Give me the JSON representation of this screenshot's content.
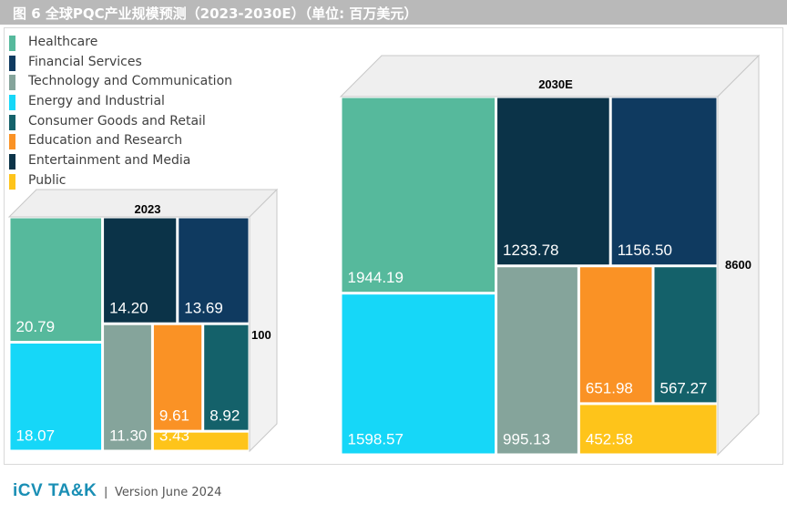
{
  "title": "图 6 全球PQC产业规模预测（2023-2030E）（单位: 百万美元）",
  "colors": {
    "Healthcare": "#56b99c",
    "Financial Services": "#0f3a60",
    "Technology and Communication": "#85a49b",
    "Energy and Industrial": "#16d7f8",
    "Consumer Goods and Retail": "#14616a",
    "Education and Research": "#fa9225",
    "Entertainment and Media": "#0b3348",
    "Public": "#fec41a"
  },
  "legend": [
    {
      "label": "Healthcare",
      "color": "#56b99c"
    },
    {
      "label": "Financial Services",
      "color": "#0f3a60"
    },
    {
      "label": "Technology and Communication",
      "color": "#85a49b"
    },
    {
      "label": "Energy and Industrial",
      "color": "#16d7f8"
    },
    {
      "label": "Consumer Goods and Retail",
      "color": "#14616a"
    },
    {
      "label": "Education and Research",
      "color": "#fa9225"
    },
    {
      "label": "Entertainment and Media",
      "color": "#0b3348"
    },
    {
      "label": "Public",
      "color": "#fec41a"
    }
  ],
  "chart_data": [
    {
      "type": "treemap",
      "title": "2023",
      "scale_label": "100",
      "series": [
        {
          "name": "Healthcare",
          "value": 20.79,
          "label": "20.79"
        },
        {
          "name": "Energy and Industrial",
          "value": 18.07,
          "label": "18.07"
        },
        {
          "name": "Entertainment and Media",
          "value": 14.2,
          "label": "14.20"
        },
        {
          "name": "Financial Services",
          "value": 13.69,
          "label": "13.69"
        },
        {
          "name": "Technology and Communication",
          "value": 11.3,
          "label": "11.30"
        },
        {
          "name": "Education and Research",
          "value": 9.61,
          "label": "9.61"
        },
        {
          "name": "Consumer Goods and Retail",
          "value": 8.92,
          "label": "8.92"
        },
        {
          "name": "Public",
          "value": 3.43,
          "label": "3.43"
        }
      ]
    },
    {
      "type": "treemap",
      "title": "2030E",
      "scale_label": "8600",
      "series": [
        {
          "name": "Healthcare",
          "value": 1944.19,
          "label": "1944.19"
        },
        {
          "name": "Energy and Industrial",
          "value": 1598.57,
          "label": "1598.57"
        },
        {
          "name": "Entertainment and Media",
          "value": 1233.78,
          "label": "1233.78"
        },
        {
          "name": "Financial Services",
          "value": 1156.5,
          "label": "1156.50"
        },
        {
          "name": "Technology and Communication",
          "value": 995.13,
          "label": "995.13"
        },
        {
          "name": "Education and Research",
          "value": 651.98,
          "label": "651.98"
        },
        {
          "name": "Consumer Goods and Retail",
          "value": 567.27,
          "label": "567.27"
        },
        {
          "name": "Public",
          "value": 452.58,
          "label": "452.58"
        }
      ]
    }
  ],
  "footer": {
    "logo": "iCV TA&K",
    "separator": "|",
    "version": "Version June 2024"
  }
}
